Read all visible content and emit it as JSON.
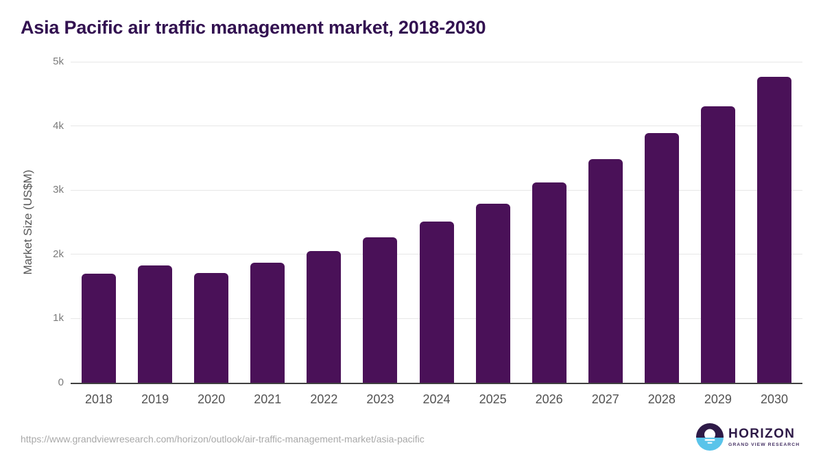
{
  "page": {
    "title": "Asia Pacific air traffic management market, 2018-2030",
    "source_url": "https://www.grandviewresearch.com/horizon/outlook/air-traffic-management-market/asia-pacific",
    "logo": {
      "name": "HORIZON",
      "tagline": "GRAND VIEW RESEARCH",
      "icon": "horizon-sun-over-water-icon"
    }
  },
  "colors": {
    "bar": "#4a1158",
    "title_text": "#321150",
    "gridline": "#e7e7e7",
    "axis_baseline": "#404040",
    "y_tick_label": "#7a7a7a",
    "x_tick_label": "#525252",
    "y_axis_title": "#565656",
    "url_text": "#a8a8a8",
    "logo_purple": "#2e1a47",
    "logo_blue": "#5ac4ea"
  },
  "chart_data": {
    "type": "bar",
    "title": "Asia Pacific air traffic management market, 2018-2030",
    "categories": [
      "2018",
      "2019",
      "2020",
      "2021",
      "2022",
      "2023",
      "2024",
      "2025",
      "2026",
      "2027",
      "2028",
      "2029",
      "2030"
    ],
    "values": [
      1700,
      1825,
      1705,
      1870,
      2050,
      2265,
      2510,
      2790,
      3120,
      3485,
      3890,
      4305,
      4770
    ],
    "xlabel": "",
    "ylabel": "Market Size (US$M)",
    "ylim": [
      0,
      5000
    ],
    "yticks": [
      0,
      1000,
      2000,
      3000,
      4000,
      5000
    ],
    "ytick_labels": [
      "0",
      "1k",
      "2k",
      "3k",
      "4k",
      "5k"
    ],
    "grid": "horizontal-only",
    "legend": "none",
    "bar_color": "#4a1158"
  }
}
